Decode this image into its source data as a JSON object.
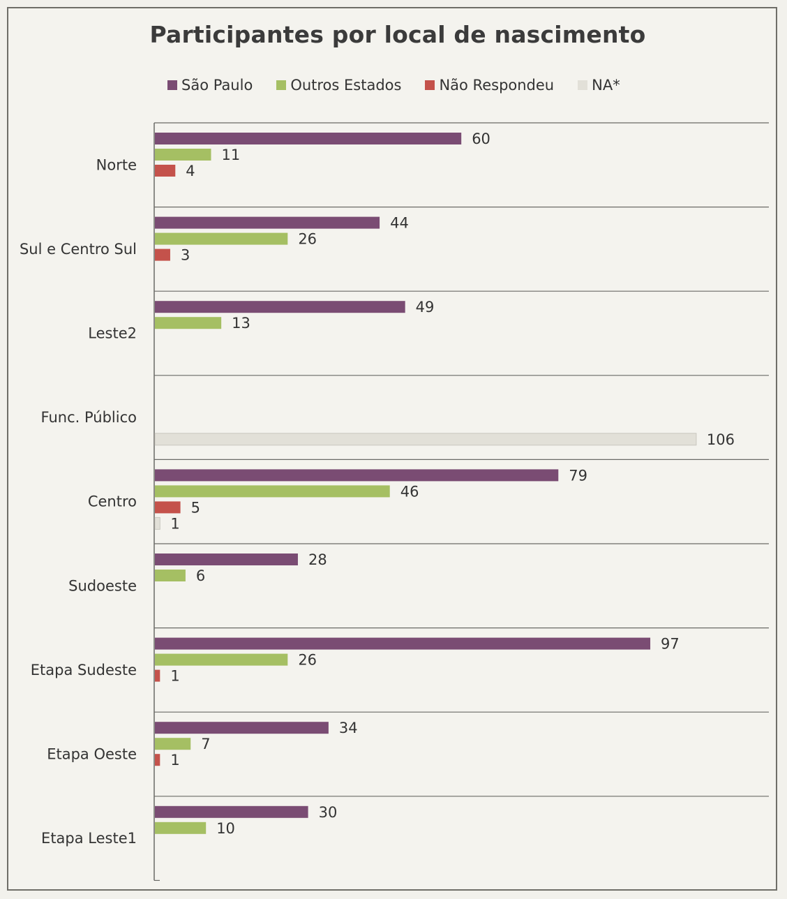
{
  "chart_data": {
    "type": "bar",
    "orientation": "horizontal",
    "title": "Participantes por local de nascimento",
    "categories": [
      "Norte",
      "Sul e Centro Sul",
      "Leste2",
      "Func. Público",
      "Centro",
      "Sudoeste",
      "Etapa Sudeste",
      "Etapa Oeste",
      "Etapa Leste1"
    ],
    "series": [
      {
        "name": "São Paulo",
        "color": "#7a4c73",
        "values": [
          60,
          44,
          49,
          null,
          79,
          28,
          97,
          34,
          30
        ]
      },
      {
        "name": "Outros Estados",
        "color": "#a5bf63",
        "values": [
          11,
          26,
          13,
          null,
          46,
          6,
          26,
          7,
          10
        ]
      },
      {
        "name": "Não Respondeu",
        "color": "#c4524b",
        "values": [
          4,
          3,
          null,
          null,
          5,
          null,
          1,
          1,
          null
        ]
      },
      {
        "name": "NA*",
        "color": "#e2e0d8",
        "values": [
          null,
          null,
          null,
          106,
          1,
          null,
          null,
          null,
          null
        ]
      }
    ],
    "xlim": [
      0,
      110
    ],
    "grid": "horizontal separators between categories",
    "legend_position": "top"
  }
}
